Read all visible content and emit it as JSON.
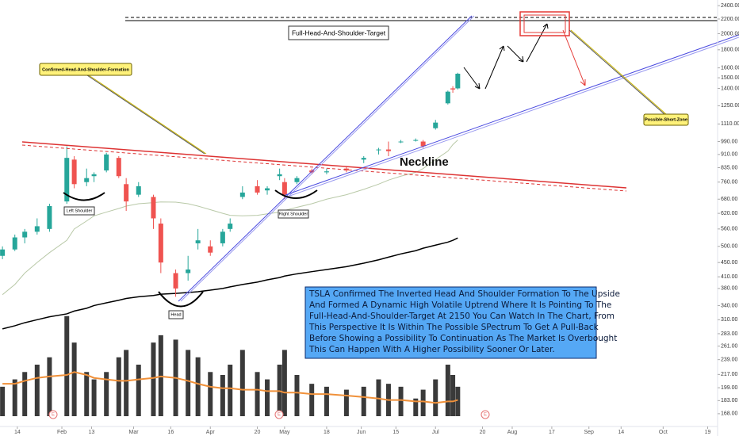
{
  "chart_data": {
    "type": "candlestick",
    "log_scale": true,
    "grid": false,
    "up_color": "#26a69a",
    "down_color": "#ef5350",
    "x": [
      8,
      13,
      17,
      22,
      27,
      34,
      37,
      42,
      45,
      50,
      55,
      58,
      63,
      69,
      72,
      78,
      83,
      87,
      92,
      97,
      100,
      105,
      111,
      115,
      120,
      122,
      127,
      133,
      139,
      147,
      154,
      160,
      164,
      169,
      175,
      178,
      183,
      188,
      190,
      192
    ],
    "open": [
      470,
      490,
      530,
      550,
      560,
      670,
      880,
      760,
      790,
      820,
      890,
      750,
      700,
      690,
      580,
      420,
      420,
      510,
      500,
      510,
      560,
      690,
      740,
      720,
      790,
      760,
      760,
      820,
      810,
      830,
      880,
      940,
      940,
      990,
      1000,
      990,
      1080,
      1270,
      1400,
      1400
    ],
    "high": [
      500,
      540,
      560,
      600,
      660,
      960,
      900,
      830,
      810,
      920,
      900,
      780,
      760,
      700,
      600,
      430,
      470,
      560,
      520,
      560,
      600,
      740,
      770,
      740,
      830,
      780,
      790,
      830,
      830,
      840,
      900,
      950,
      990,
      1000,
      1010,
      1000,
      1140,
      1380,
      1420,
      1550
    ],
    "low": [
      460,
      485,
      510,
      540,
      550,
      660,
      730,
      740,
      760,
      810,
      780,
      630,
      690,
      560,
      420,
      360,
      400,
      490,
      470,
      500,
      550,
      680,
      700,
      700,
      770,
      680,
      750,
      800,
      800,
      810,
      860,
      910,
      900,
      980,
      990,
      950,
      1070,
      1260,
      1360,
      1390
    ],
    "close": [
      490,
      530,
      550,
      570,
      650,
      890,
      750,
      780,
      800,
      910,
      790,
      670,
      740,
      600,
      450,
      380,
      430,
      520,
      480,
      550,
      580,
      710,
      710,
      730,
      800,
      700,
      780,
      810,
      815,
      820,
      890,
      940,
      930,
      990,
      1000,
      960,
      1120,
      1370,
      1390,
      1540
    ],
    "volume": [
      20,
      25,
      30,
      35,
      40,
      68,
      50,
      30,
      25,
      30,
      40,
      45,
      35,
      50,
      55,
      52,
      45,
      40,
      30,
      28,
      35,
      45,
      30,
      25,
      35,
      45,
      28,
      22,
      20,
      18,
      20,
      25,
      22,
      20,
      12,
      18,
      25,
      35,
      28,
      20
    ],
    "volume_color": "#3a3a3a",
    "volume_lim": [
      0,
      70
    ],
    "volume_ma": {
      "color": "#f0913a",
      "values": [
        22,
        22,
        24,
        26,
        27,
        28,
        30,
        28,
        26,
        25,
        24,
        24,
        25,
        26,
        27,
        26,
        24,
        22,
        20,
        19,
        19,
        18,
        18,
        17,
        17,
        16,
        16,
        15,
        15,
        14,
        13,
        12,
        11,
        11,
        10,
        10,
        9,
        10,
        10,
        11
      ]
    },
    "moving_averages": [
      {
        "color": "#000000",
        "values": [
          292,
          298,
          304,
          310,
          316,
          322,
          328,
          334,
          340,
          346,
          352,
          356,
          360,
          363,
          366,
          368,
          370,
          372,
          376,
          380,
          384,
          390,
          396,
          402,
          408,
          412,
          418,
          424,
          430,
          438,
          448,
          458,
          466,
          476,
          486,
          494,
          504,
          514,
          520,
          528
        ]
      },
      {
        "color": "#b9c9a8",
        "values": [
          365,
          390,
          420,
          450,
          480,
          520,
          560,
          590,
          610,
          625,
          640,
          650,
          660,
          665,
          668,
          667,
          660,
          650,
          635,
          620,
          612,
          610,
          612,
          618,
          625,
          632,
          645,
          660,
          680,
          700,
          725,
          750,
          770,
          790,
          810,
          830,
          880,
          930,
          970,
          1000
        ]
      }
    ],
    "xlim": [
      7,
      297
    ],
    "xticks": [
      {
        "value": 14,
        "label": "14"
      },
      {
        "value": 32,
        "label": "Feb"
      },
      {
        "value": 44,
        "label": "13"
      },
      {
        "value": 61,
        "label": "Mar"
      },
      {
        "value": 76,
        "label": "16"
      },
      {
        "value": 92,
        "label": "Apr"
      },
      {
        "value": 111,
        "label": "20"
      },
      {
        "value": 122,
        "label": "May"
      },
      {
        "value": 139,
        "label": "18"
      },
      {
        "value": 153,
        "label": "Jun"
      },
      {
        "value": 167,
        "label": "15"
      },
      {
        "value": 183,
        "label": "Jul"
      },
      {
        "value": 202,
        "label": "20"
      },
      {
        "value": 214,
        "label": "Aug"
      },
      {
        "value": 230,
        "label": "17"
      },
      {
        "value": 245,
        "label": "Sep"
      },
      {
        "value": 258,
        "label": "14"
      },
      {
        "value": 275,
        "label": "Oct"
      },
      {
        "value": 293,
        "label": "19"
      }
    ],
    "ylim": [
      153,
      2490
    ],
    "yticks": [
      {
        "value": 2400,
        "label": "2400.00"
      },
      {
        "value": 2200,
        "label": "2200.00"
      },
      {
        "value": 2000,
        "label": "2000.00"
      },
      {
        "value": 1800,
        "label": "1800.00"
      },
      {
        "value": 1600,
        "label": "1600.00"
      },
      {
        "value": 1500,
        "label": "1500.00"
      },
      {
        "value": 1400,
        "label": "1400.00"
      },
      {
        "value": 1250,
        "label": "1250.00"
      },
      {
        "value": 1110,
        "label": "1110.00"
      },
      {
        "value": 990,
        "label": "990.00"
      },
      {
        "value": 910,
        "label": "910.00"
      },
      {
        "value": 835,
        "label": "835.00"
      },
      {
        "value": 760,
        "label": "760.00"
      },
      {
        "value": 680,
        "label": "680.00"
      },
      {
        "value": 620,
        "label": "620.00"
      },
      {
        "value": 560,
        "label": "560.00"
      },
      {
        "value": 500,
        "label": "500.00"
      },
      {
        "value": 450,
        "label": "450.00"
      },
      {
        "value": 410,
        "label": "410.00"
      },
      {
        "value": 380,
        "label": "380.00"
      },
      {
        "value": 340,
        "label": "340.00"
      },
      {
        "value": 310,
        "label": "310.00"
      },
      {
        "value": 283,
        "label": "283.00"
      },
      {
        "value": 261,
        "label": "261.00"
      },
      {
        "value": 239,
        "label": "239.00"
      },
      {
        "value": 217,
        "label": "217.00"
      },
      {
        "value": 199,
        "label": "199.00"
      },
      {
        "value": 183,
        "label": "183.00"
      },
      {
        "value": 168,
        "label": "168.00"
      }
    ]
  },
  "annotations": {
    "target": "Full-Head-And-Shoulder-Target",
    "formation": "Confirmed-Head-And-Shoulder-Formation",
    "short_zone": "Possible-Short-Zone",
    "neckline": "Neckline",
    "left_shoulder": "Left Shoulder",
    "right_shoulder": "Right Shoulder",
    "head": "Head",
    "earnings": [
      "E",
      "E",
      "E"
    ],
    "description": [
      "TSLA Confirmed The Inverted Head And Shoulder Formation To The Upside",
      "And Formed A Dynamic High Volatile Uptrend Where It Is Pointing To The",
      "Full-Head-And-Shoulder-Target At 2150 You Can Watch In The Chart, From",
      "This Perspective It Is Within The Possible SPectrum To Get A Pull-Back",
      "Before Showing a Possibility To Continuation As The Market Is Overbought",
      "This Can Happen With A Higher Possibility Sooner Or Later."
    ]
  }
}
